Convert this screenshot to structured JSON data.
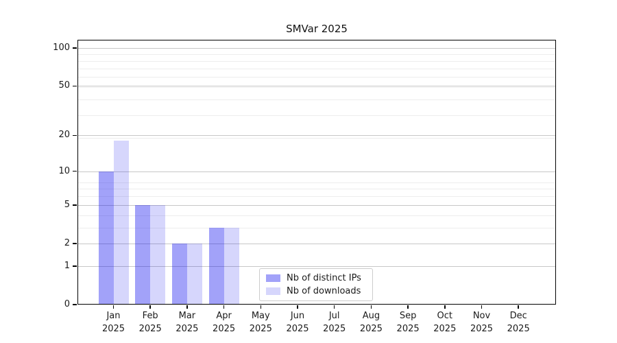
{
  "chart_data": {
    "type": "bar",
    "title": "SMVar 2025",
    "categories": [
      "Jan",
      "Feb",
      "Mar",
      "Apr",
      "May",
      "Jun",
      "Jul",
      "Aug",
      "Sep",
      "Oct",
      "Nov",
      "Dec"
    ],
    "x_year_label": "2025",
    "series": [
      {
        "name": "Nb of distinct IPs",
        "color": "rgba(10,10,240,0.38)",
        "values": [
          10,
          5,
          2,
          3,
          0,
          0,
          0,
          0,
          0,
          0,
          0,
          0
        ]
      },
      {
        "name": "Nb of downloads",
        "color": "rgba(10,10,240,0.17)",
        "values": [
          18,
          5,
          2,
          3,
          0,
          0,
          0,
          0,
          0,
          0,
          0,
          0
        ]
      }
    ],
    "y_ticks": [
      0,
      1,
      2,
      5,
      10,
      20,
      50,
      100
    ],
    "y_scale": "log1p",
    "ylim": [
      0,
      116
    ],
    "grid": true,
    "legend_position": "lower-center",
    "colors": {
      "major_grid": "#c7c7c7",
      "minor_grid": "#ededed",
      "axis": "#000000",
      "text": "#1a1a1a",
      "background": "#ffffff",
      "legend_border": "#cccccc"
    }
  }
}
